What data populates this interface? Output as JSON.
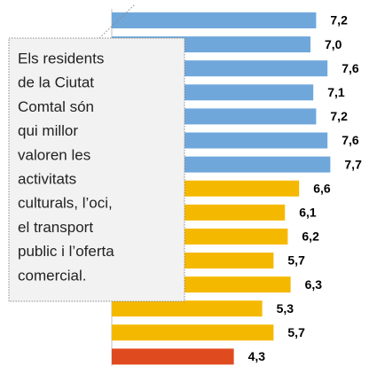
{
  "chart_data": {
    "type": "bar",
    "orientation": "horizontal",
    "values": [
      7.2,
      7.0,
      7.6,
      7.1,
      7.2,
      7.6,
      7.7,
      6.6,
      6.1,
      6.2,
      5.7,
      6.3,
      5.3,
      5.7,
      4.3
    ],
    "value_labels": [
      "7,2",
      "7,0",
      "7,6",
      "7,1",
      "7,2",
      "7,6",
      "7,7",
      "6,6",
      "6,1",
      "6,2",
      "5,7",
      "6,3",
      "5,3",
      "5,7",
      "4,3"
    ],
    "colors": [
      "#6fa7db",
      "#6fa7db",
      "#6fa7db",
      "#6fa7db",
      "#6fa7db",
      "#6fa7db",
      "#6fa7db",
      "#f5b800",
      "#f5b800",
      "#f5b800",
      "#f5b800",
      "#f5b800",
      "#f5b800",
      "#f5b800",
      "#e04a1f"
    ],
    "xlim": [
      0,
      9
    ],
    "annotation": [
      "Els residents",
      "de la Ciutat",
      "Comtal són",
      "qui millor",
      "valoren les",
      "activitats",
      "culturals, l’oci,",
      "el transport",
      "public i l’oferta",
      "comercial."
    ]
  }
}
